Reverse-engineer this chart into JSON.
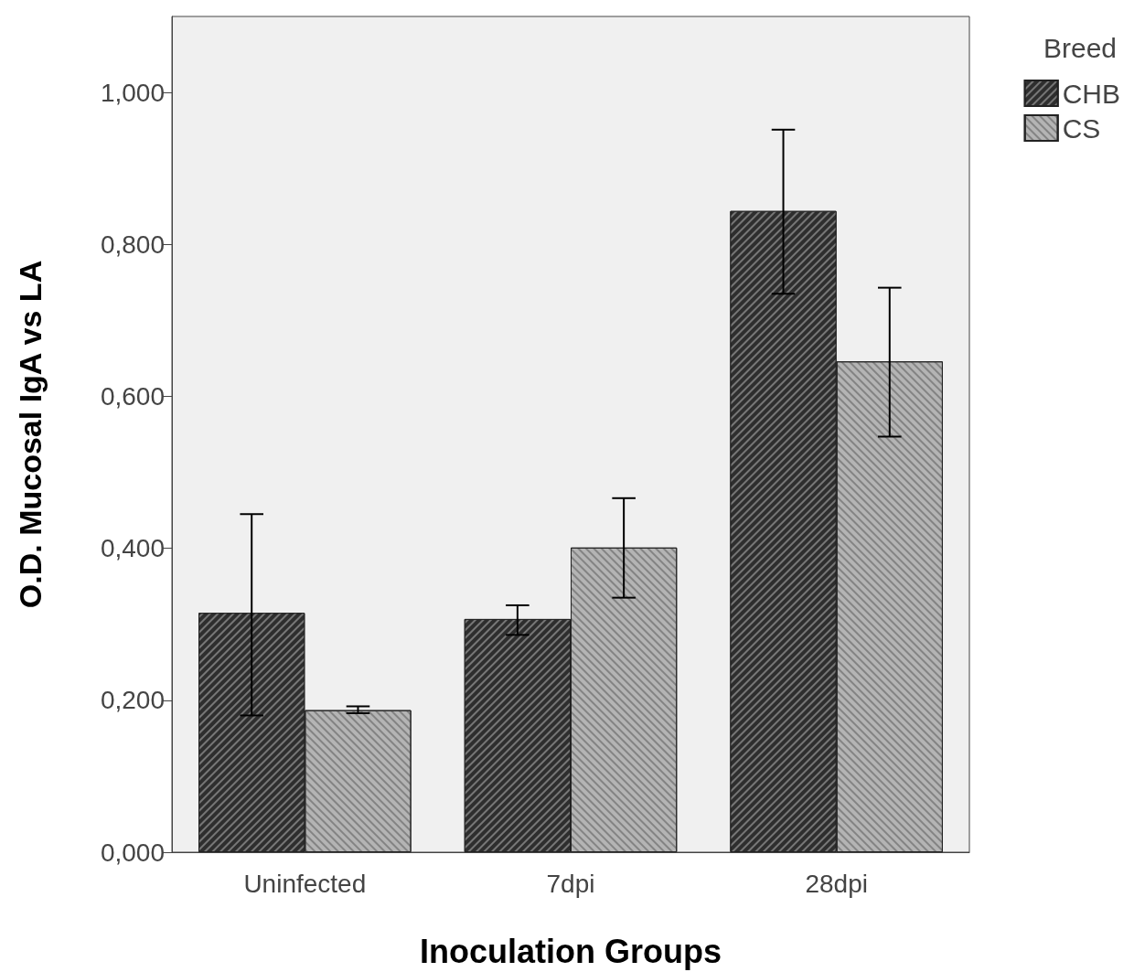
{
  "chart_data": {
    "type": "bar",
    "xlabel": "Inoculation Groups",
    "ylabel": "O.D. Mucosal IgA vs LA",
    "legend_title": "Breed",
    "categories": [
      "Uninfected",
      "7dpi",
      "28dpi"
    ],
    "series": [
      {
        "name": "CHB",
        "color": "#2e2e2e",
        "values": [
          0.315,
          0.307,
          0.844
        ],
        "errors": [
          [
            0.18,
            0.445
          ],
          [
            0.286,
            0.325
          ],
          [
            0.735,
            0.951
          ]
        ]
      },
      {
        "name": "CS",
        "color": "#b4b4b4",
        "values": [
          0.187,
          0.401,
          0.646
        ],
        "errors": [
          [
            0.183,
            0.192
          ],
          [
            0.335,
            0.466
          ],
          [
            0.547,
            0.743
          ]
        ]
      }
    ],
    "ylim": [
      0,
      1.1
    ],
    "yticks": [
      {
        "value": 0,
        "label": "0,000"
      },
      {
        "value": 0.2,
        "label": "0,200"
      },
      {
        "value": 0.4,
        "label": "0,400"
      },
      {
        "value": 0.6,
        "label": "0,600"
      },
      {
        "value": 0.8,
        "label": "0,800"
      },
      {
        "value": 1.0,
        "label": "1,000"
      }
    ],
    "grid": false,
    "legend": "top right"
  }
}
